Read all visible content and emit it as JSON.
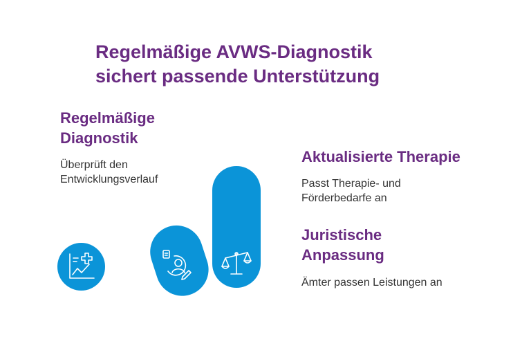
{
  "title": {
    "line1": "Regelmäßige AVWS-Diagnostik",
    "line2": "sichert passende Unterstützung"
  },
  "colors": {
    "heading": "#6a2c82",
    "text": "#333333",
    "shape": "#0b94d8",
    "icon_stroke": "#ffffff"
  },
  "sections": {
    "diagnostik": {
      "heading_line1": "Regelmäßige",
      "heading_line2": "Diagnostik",
      "text_line1": "Überprüft den",
      "text_line2": "Entwicklungsverlauf",
      "icon": "chart-medical-cross-icon"
    },
    "therapie": {
      "heading": "Aktualisierte Therapie",
      "text_line1": "Passt Therapie- und",
      "text_line2": "Förderbedarfe an",
      "icon": "person-document-pencil-icon"
    },
    "juristisch": {
      "heading_line1": "Juristische",
      "heading_line2": "Anpassung",
      "text": "Ämter passen Leistungen an",
      "icon": "scales-icon"
    }
  }
}
